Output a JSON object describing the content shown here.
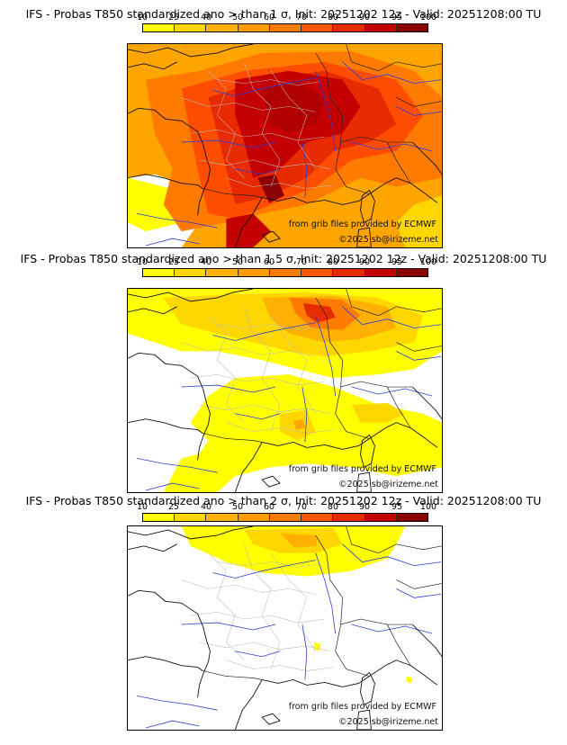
{
  "colorbar": {
    "ticks": [
      "10",
      "25",
      "40",
      "50",
      "60",
      "70",
      "80",
      "90",
      "95",
      "100"
    ],
    "colors": [
      "#ffff00",
      "#ffd700",
      "#ffb000",
      "#ff9a00",
      "#ff7a00",
      "#ff5a00",
      "#e82a00",
      "#c40000",
      "#8b0000"
    ]
  },
  "panels": [
    {
      "title": "IFS - Probas T850  standardized ano > than 1 σ, Init: 20251202 12z - Valid: 20251208:00 TU",
      "credit_grib": "from grib files provided by ECMWF",
      "credit_copyright": "©2025 sb@irizeme.net"
    },
    {
      "title": "IFS - Probas T850  standardized ano > than 1.5 σ, Init: 20251202 12z - Valid: 20251208:00 TU",
      "credit_grib": "from grib files provided by ECMWF",
      "credit_copyright": "©2025 sb@irizeme.net"
    },
    {
      "title": "IFS - Probas T850  standardized ano > than 2 σ, Init: 20251202 12z - Valid: 20251208:00 TU",
      "credit_grib": "from grib files provided by ECMWF",
      "credit_copyright": "©2025 sb@irizeme.net"
    }
  ]
}
